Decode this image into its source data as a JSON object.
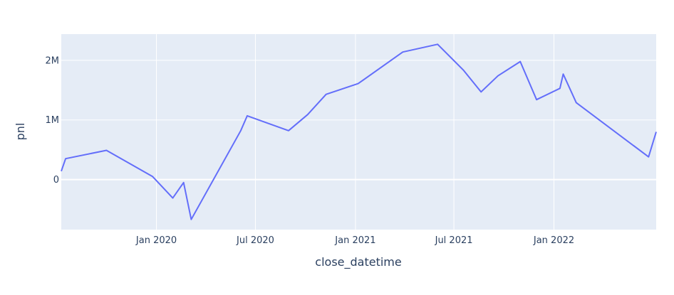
{
  "chart_data": {
    "type": "line",
    "title": "",
    "xlabel": "close_datetime",
    "ylabel": "pnl",
    "x_tick_labels": [
      "Jan 2020",
      "Jul 2020",
      "Jan 2021",
      "Jul 2021",
      "Jan 2022"
    ],
    "x_tick_dates": [
      "2020-01-01",
      "2020-07-01",
      "2021-01-01",
      "2021-07-01",
      "2022-01-01"
    ],
    "y_ticks": [
      0,
      1000000,
      2000000
    ],
    "y_tick_labels": [
      "0",
      "1M",
      "2M"
    ],
    "xlim": [
      "2019-07-10",
      "2022-07-08"
    ],
    "ylim": [
      -840000,
      2440000
    ],
    "grid": true,
    "legend": "none",
    "colors": {
      "line": "#636efa",
      "plot_bg": "#e5ecf6",
      "grid": "#ffffff",
      "text": "#2a3f5f"
    },
    "series": [
      {
        "x": [
          "2019-07-10",
          "2019-07-18",
          "2019-10-01",
          "2019-12-25",
          "2020-01-31",
          "2020-02-20",
          "2020-03-05",
          "2020-06-04",
          "2020-06-16",
          "2020-08-31",
          "2020-10-05",
          "2020-11-08",
          "2021-01-06",
          "2021-03-29",
          "2021-06-01",
          "2021-07-19",
          "2021-08-20",
          "2021-09-20",
          "2021-10-31",
          "2021-11-30",
          "2022-01-12",
          "2022-01-18",
          "2022-02-11",
          "2022-06-24",
          "2022-07-08"
        ],
        "y": [
          140000,
          350000,
          490000,
          50000,
          -310000,
          -50000,
          -670000,
          820000,
          1070000,
          820000,
          1090000,
          1430000,
          1610000,
          2140000,
          2270000,
          1830000,
          1470000,
          1740000,
          1980000,
          1340000,
          1530000,
          1770000,
          1290000,
          380000,
          800000
        ]
      }
    ]
  }
}
